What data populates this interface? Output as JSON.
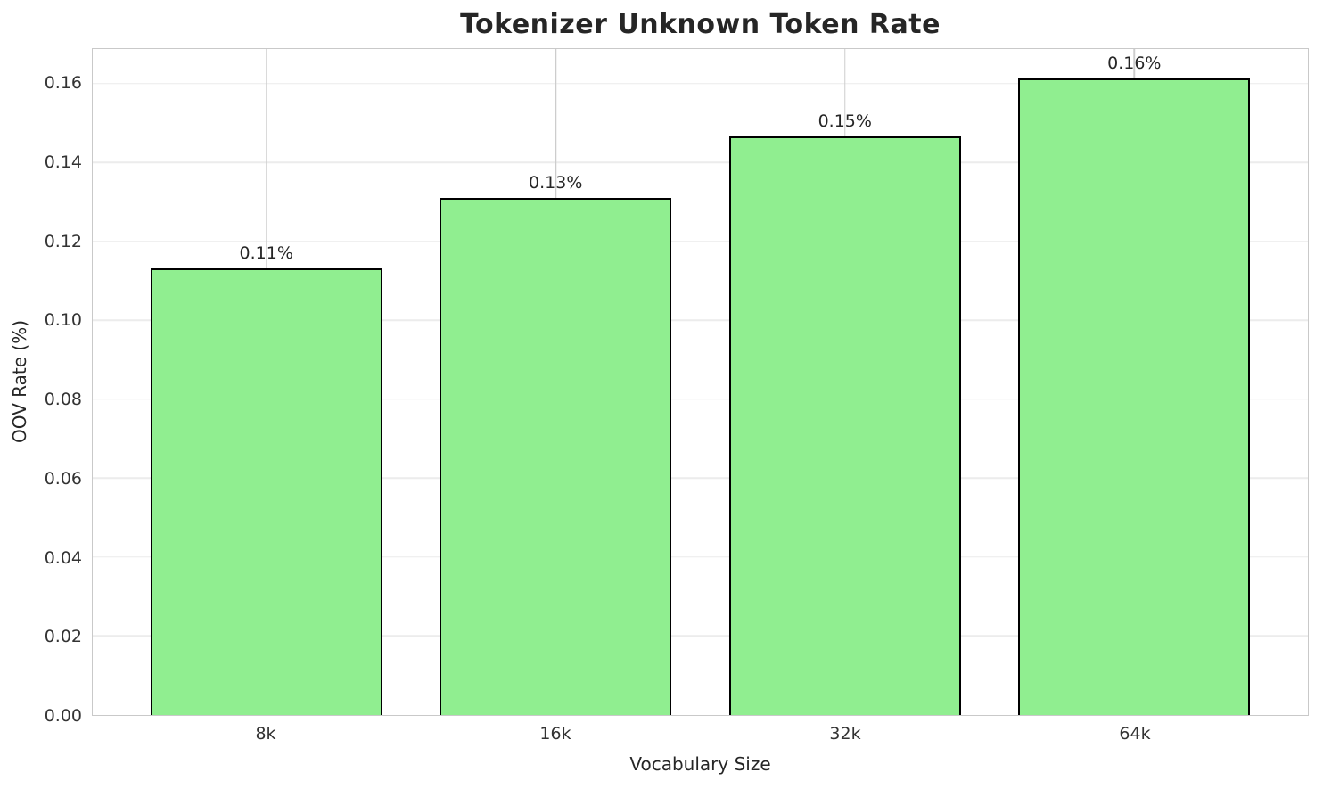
{
  "chart_data": {
    "type": "bar",
    "title": "Tokenizer Unknown Token Rate",
    "xlabel": "Vocabulary Size",
    "ylabel": "OOV Rate (%)",
    "categories": [
      "8k",
      "16k",
      "32k",
      "64k"
    ],
    "values": [
      0.1133,
      0.131,
      0.1466,
      0.1613
    ],
    "bar_labels": [
      "0.11%",
      "0.13%",
      "0.15%",
      "0.16%"
    ],
    "yticks": [
      0.0,
      0.02,
      0.04,
      0.06,
      0.08,
      0.1,
      0.12,
      0.14,
      0.16
    ],
    "ytick_labels": [
      "0.00",
      "0.02",
      "0.04",
      "0.06",
      "0.08",
      "0.10",
      "0.12",
      "0.14",
      "0.16"
    ],
    "ylim": [
      0,
      0.1688
    ],
    "xlim": [
      -0.6,
      3.6
    ],
    "bar_width_units": 0.8,
    "grid": true,
    "legend": "none",
    "bar_color": "#90EE90",
    "bar_edge_color": "#000000",
    "grid_color_h": "#ececec",
    "grid_color_v": "#cdcdcd",
    "spine_color": "#c9c9c9",
    "background": "#ffffff"
  }
}
